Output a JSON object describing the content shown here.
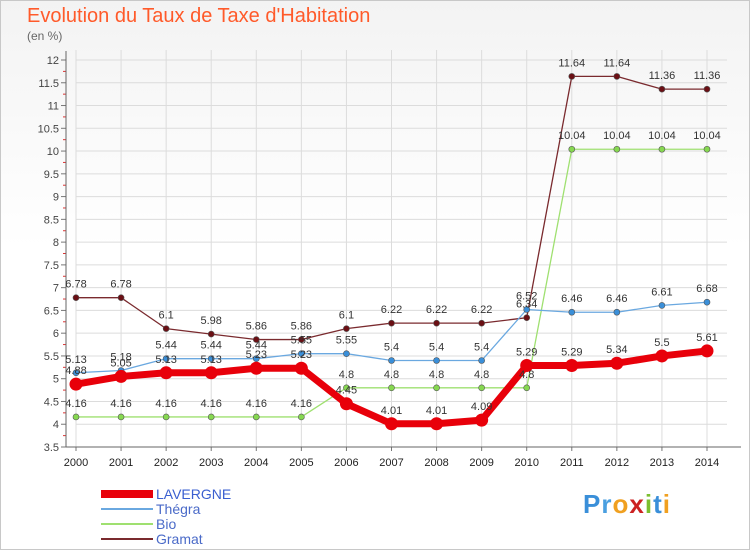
{
  "title": "Evolution du Taux de Taxe d'Habitation",
  "subtitle": "(en %)",
  "logo": {
    "text": "Proxiti",
    "colors": [
      "#3a8fd9",
      "#4a9fe0",
      "#f0a020",
      "#cc2222",
      "#7cbf30",
      "#3a8fd9",
      "#f0a020"
    ]
  },
  "chart_data": {
    "type": "line",
    "title": "Evolution du Taux de Taxe d'Habitation",
    "ylabel": "(en %)",
    "xlabel": "",
    "ylim": [
      3.5,
      12
    ],
    "yticks": [
      3.5,
      4,
      4.5,
      5,
      5.5,
      6,
      6.5,
      7,
      7.5,
      8,
      8.5,
      9,
      9.5,
      10,
      10.5,
      11,
      11.5,
      12
    ],
    "ytick_labels": [
      "3.5",
      "4",
      "4.5",
      "5",
      "5.5",
      "6",
      "6.5",
      "7",
      "7.5",
      "8",
      "8.5",
      "9",
      "9.5",
      "10",
      "10.5",
      "11",
      "11.5",
      "12"
    ],
    "categories": [
      "2000",
      "2001",
      "2002",
      "2003",
      "2004",
      "2005",
      "2006",
      "2007",
      "2008",
      "2009",
      "2010",
      "2011",
      "2012",
      "2013",
      "2014"
    ],
    "grid": true,
    "legend_position": "bottom-left",
    "series": [
      {
        "name": "LAVERGNE",
        "color": "#e8000a",
        "line_color": "#e8000a",
        "values": [
          4.88,
          5.05,
          5.13,
          5.13,
          5.23,
          5.23,
          4.45,
          4.01,
          4.01,
          4.09,
          5.29,
          5.29,
          5.34,
          5.5,
          5.61
        ],
        "labels": [
          "4.88",
          "5.05",
          "5.13",
          "5.13",
          "5.23",
          "5.23",
          "4.45",
          "4.01",
          "4.01",
          "4.09",
          "5.29",
          "5.29",
          "5.34",
          "5.5",
          "5.61"
        ]
      },
      {
        "name": "Thégra",
        "color": "#3a8fd9",
        "line_color": "#6aa8e0",
        "values": [
          5.13,
          5.18,
          5.44,
          5.44,
          5.44,
          5.55,
          5.55,
          5.4,
          5.4,
          5.4,
          6.52,
          6.46,
          6.46,
          6.61,
          6.68
        ],
        "labels": [
          "5.13",
          "5.18",
          "5.44",
          "5.44",
          "5.44",
          "5.55",
          "5.55",
          "5.4",
          "5.4",
          "5.4",
          "6.52",
          "6.46",
          "6.46",
          "6.61",
          "6.68"
        ]
      },
      {
        "name": "Bio",
        "color": "#86d850",
        "line_color": "#9fe070",
        "values": [
          4.16,
          4.16,
          4.16,
          4.16,
          4.16,
          4.16,
          4.8,
          4.8,
          4.8,
          4.8,
          4.8,
          10.04,
          10.04,
          10.04,
          10.04
        ],
        "labels": [
          "4.16",
          "4.16",
          "4.16",
          "4.16",
          "4.16",
          "4.16",
          "4.8",
          "4.8",
          "4.8",
          "4.8",
          "4.8",
          "10.04",
          "10.04",
          "10.04",
          "10.04"
        ]
      },
      {
        "name": "Gramat",
        "color": "#6b0f14",
        "line_color": "#7a2a2e",
        "values": [
          6.78,
          6.78,
          6.1,
          5.98,
          5.86,
          5.86,
          6.1,
          6.22,
          6.22,
          6.22,
          6.34,
          11.64,
          11.64,
          11.36,
          11.36
        ],
        "labels": [
          "6.78",
          "6.78",
          "6.1",
          "5.98",
          "5.86",
          "5.86",
          "6.1",
          "6.22",
          "6.22",
          "6.22",
          "6.34",
          "11.64",
          "11.64",
          "11.36",
          "11.36"
        ]
      }
    ]
  }
}
